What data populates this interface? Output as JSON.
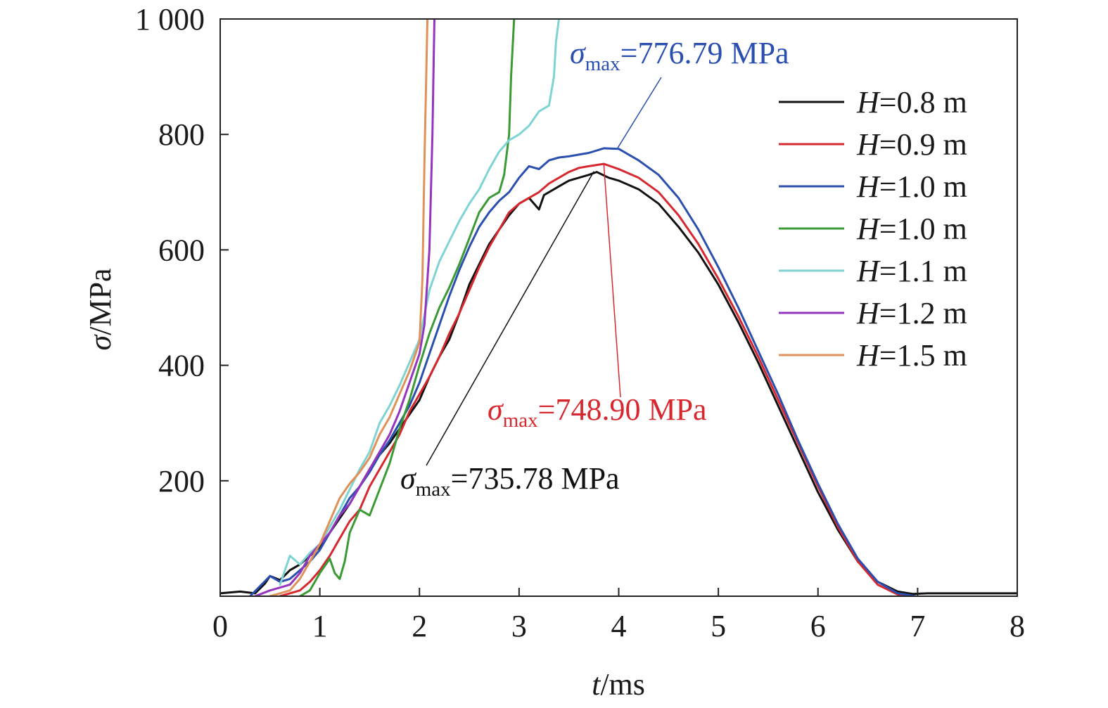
{
  "chart_data": {
    "type": "line",
    "xlabel": {
      "symbol": "t",
      "unit": "/ms"
    },
    "ylabel": {
      "symbol": "σ",
      "unit": "/MPa"
    },
    "xlim": [
      0,
      8
    ],
    "ylim": [
      0,
      1000
    ],
    "x_ticks": [
      0,
      1,
      2,
      3,
      4,
      5,
      6,
      7,
      8
    ],
    "x_tick_labels": [
      "0",
      "1",
      "2",
      "3",
      "4",
      "5",
      "6",
      "7",
      "8"
    ],
    "y_ticks": [
      200,
      400,
      600,
      800,
      1000
    ],
    "y_tick_labels": [
      "200",
      "400",
      "600",
      "800",
      "1 000"
    ],
    "grid": false,
    "legend_position": "top-right",
    "series": [
      {
        "name": "H=0.8 m",
        "legend_symbol": "H",
        "legend_value": "=0.8 m",
        "color": "#111111",
        "x": [
          0.0,
          0.2,
          0.35,
          0.45,
          0.5,
          0.6,
          0.7,
          0.8,
          0.9,
          1.0,
          1.1,
          1.2,
          1.3,
          1.4,
          1.5,
          1.6,
          1.7,
          1.8,
          1.9,
          2.0,
          2.1,
          2.2,
          2.3,
          2.4,
          2.5,
          2.6,
          2.7,
          2.8,
          2.9,
          3.0,
          3.1,
          3.2,
          3.25,
          3.3,
          3.4,
          3.5,
          3.6,
          3.7,
          3.78,
          3.9,
          4.0,
          4.2,
          4.4,
          4.6,
          4.8,
          5.0,
          5.2,
          5.4,
          5.6,
          5.8,
          6.0,
          6.2,
          6.4,
          6.6,
          6.8,
          6.95,
          7.1,
          7.5,
          8.0
        ],
        "y": [
          5,
          8,
          5,
          22,
          35,
          28,
          45,
          55,
          70,
          85,
          110,
          135,
          160,
          190,
          220,
          245,
          265,
          290,
          315,
          340,
          380,
          415,
          445,
          490,
          540,
          575,
          610,
          635,
          660,
          680,
          690,
          670,
          695,
          700,
          710,
          720,
          725,
          730,
          735,
          725,
          720,
          705,
          680,
          640,
          595,
          540,
          475,
          405,
          330,
          255,
          180,
          115,
          60,
          25,
          8,
          4,
          5,
          5,
          5
        ]
      },
      {
        "name": "H=0.9 m",
        "legend_symbol": "H",
        "legend_value": "=0.9 m",
        "color": "#d7282f",
        "x": [
          0.6,
          0.8,
          0.9,
          1.0,
          1.1,
          1.2,
          1.3,
          1.4,
          1.5,
          1.6,
          1.7,
          1.8,
          1.9,
          2.0,
          2.1,
          2.2,
          2.3,
          2.4,
          2.5,
          2.6,
          2.7,
          2.8,
          2.9,
          3.0,
          3.1,
          3.2,
          3.3,
          3.4,
          3.5,
          3.6,
          3.7,
          3.85,
          4.0,
          4.2,
          4.4,
          4.6,
          4.8,
          5.0,
          5.2,
          5.4,
          5.6,
          5.8,
          6.0,
          6.2,
          6.4,
          6.6,
          6.8,
          6.92
        ],
        "y": [
          0,
          10,
          25,
          45,
          70,
          100,
          130,
          150,
          190,
          220,
          250,
          280,
          320,
          350,
          380,
          415,
          455,
          490,
          530,
          570,
          605,
          635,
          665,
          680,
          690,
          700,
          715,
          725,
          735,
          742,
          745,
          749,
          740,
          725,
          700,
          660,
          610,
          550,
          485,
          415,
          340,
          265,
          190,
          120,
          60,
          20,
          3,
          0
        ]
      },
      {
        "name": "H=1.0 m",
        "legend_symbol": "H",
        "legend_value": "=1.0 m",
        "color": "#2a4fb0",
        "x": [
          0.3,
          0.5,
          0.6,
          0.7,
          0.8,
          0.9,
          1.0,
          1.1,
          1.2,
          1.3,
          1.4,
          1.5,
          1.6,
          1.7,
          1.8,
          1.9,
          2.0,
          2.1,
          2.2,
          2.3,
          2.4,
          2.5,
          2.6,
          2.7,
          2.8,
          2.9,
          3.0,
          3.1,
          3.2,
          3.3,
          3.4,
          3.5,
          3.6,
          3.7,
          3.85,
          4.0,
          4.2,
          4.4,
          4.6,
          4.8,
          5.0,
          5.2,
          5.4,
          5.6,
          5.8,
          6.0,
          6.2,
          6.4,
          6.6,
          6.8,
          6.98
        ],
        "y": [
          0,
          35,
          25,
          30,
          45,
          60,
          80,
          110,
          140,
          170,
          190,
          215,
          245,
          270,
          300,
          330,
          370,
          420,
          470,
          520,
          565,
          605,
          640,
          665,
          685,
          700,
          725,
          745,
          740,
          755,
          760,
          762,
          765,
          768,
          776,
          775,
          755,
          730,
          690,
          635,
          570,
          500,
          425,
          350,
          270,
          195,
          125,
          65,
          25,
          5,
          0
        ]
      },
      {
        "name": "H=1.0 m",
        "legend_symbol": "H",
        "legend_value": "=1.0 m",
        "color": "#3a9a34",
        "x": [
          0.8,
          0.9,
          1.0,
          1.1,
          1.15,
          1.2,
          1.25,
          1.3,
          1.4,
          1.5,
          1.6,
          1.7,
          1.8,
          1.9,
          2.0,
          2.1,
          2.2,
          2.3,
          2.4,
          2.5,
          2.6,
          2.7,
          2.8,
          2.85,
          2.9,
          2.92,
          2.95
        ],
        "y": [
          0,
          10,
          40,
          65,
          40,
          30,
          60,
          110,
          150,
          140,
          185,
          230,
          290,
          340,
          400,
          455,
          500,
          535,
          575,
          620,
          665,
          690,
          700,
          730,
          800,
          900,
          1000
        ]
      },
      {
        "name": "H=1.1 m",
        "legend_symbol": "H",
        "legend_value": "=1.1 m",
        "color": "#7fd3d3",
        "x": [
          0.6,
          0.7,
          0.8,
          0.9,
          1.0,
          1.1,
          1.2,
          1.3,
          1.4,
          1.5,
          1.6,
          1.7,
          1.8,
          1.9,
          2.0,
          2.1,
          2.2,
          2.3,
          2.4,
          2.5,
          2.6,
          2.7,
          2.8,
          2.9,
          3.0,
          3.1,
          3.2,
          3.3,
          3.35,
          3.37,
          3.4
        ],
        "y": [
          20,
          70,
          55,
          75,
          90,
          120,
          150,
          185,
          220,
          250,
          300,
          330,
          365,
          405,
          445,
          530,
          580,
          615,
          650,
          680,
          705,
          740,
          770,
          790,
          800,
          815,
          840,
          850,
          900,
          960,
          1000
        ]
      },
      {
        "name": "H=1.2 m",
        "legend_symbol": "H",
        "legend_value": "=1.2 m",
        "color": "#9535be",
        "x": [
          0.35,
          0.5,
          0.6,
          0.7,
          0.8,
          0.9,
          1.0,
          1.1,
          1.2,
          1.3,
          1.4,
          1.5,
          1.6,
          1.7,
          1.8,
          1.9,
          2.0,
          2.05,
          2.1,
          2.13,
          2.15
        ],
        "y": [
          0,
          10,
          15,
          20,
          40,
          70,
          90,
          110,
          140,
          160,
          190,
          220,
          250,
          280,
          320,
          370,
          420,
          470,
          600,
          800,
          1000
        ]
      },
      {
        "name": "H=1.5 m",
        "legend_symbol": "H",
        "legend_value": "=1.5 m",
        "color": "#e0915a",
        "x": [
          0.5,
          0.6,
          0.7,
          0.8,
          0.9,
          1.0,
          1.1,
          1.2,
          1.3,
          1.4,
          1.5,
          1.6,
          1.7,
          1.8,
          1.9,
          2.0,
          2.03,
          2.05,
          2.07,
          2.08
        ],
        "y": [
          0,
          5,
          10,
          30,
          60,
          90,
          130,
          170,
          195,
          215,
          240,
          280,
          310,
          350,
          390,
          440,
          550,
          750,
          920,
          1000
        ]
      }
    ],
    "annotations": [
      {
        "symbol": "σ",
        "subscript": "max",
        "text": "=776.79 MPa",
        "color": "#2a4fb0",
        "point": [
          3.99,
          776.79
        ]
      },
      {
        "symbol": "σ",
        "subscript": "max",
        "text": "=748.90 MPa",
        "color": "#d7282f",
        "point": [
          3.85,
          748.9
        ]
      },
      {
        "symbol": "σ",
        "subscript": "max",
        "text": "=735.78 MPa",
        "color": "#111111",
        "point": [
          3.75,
          735.78
        ]
      }
    ]
  }
}
